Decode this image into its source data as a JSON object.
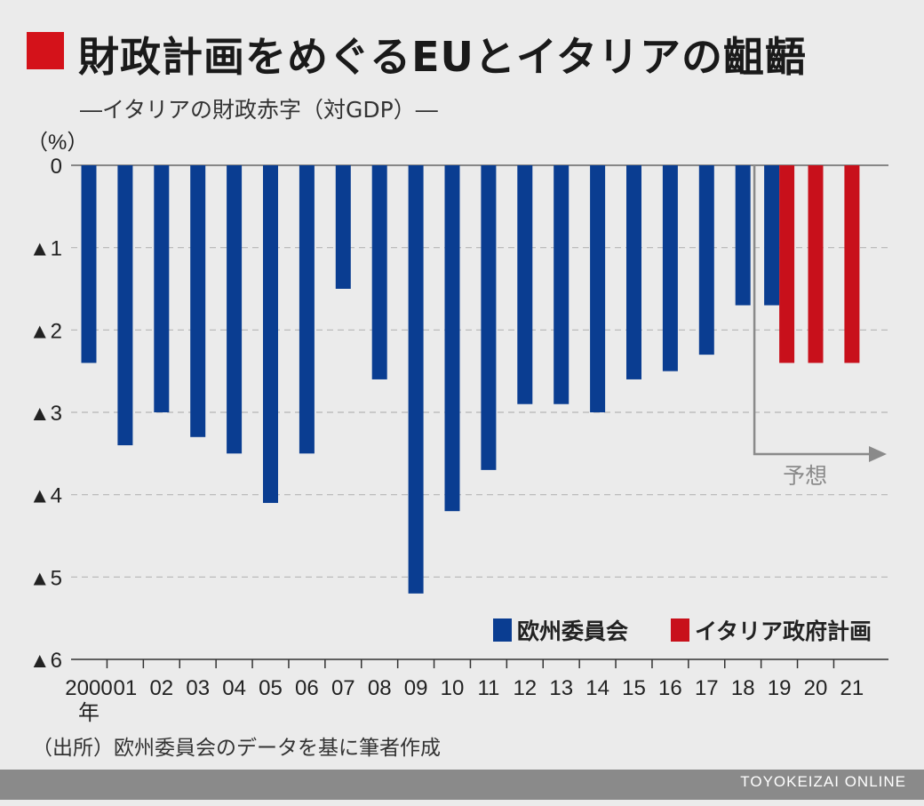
{
  "header": {
    "title": "財政計画をめぐるEUとイタリアの齟齬",
    "subtitle": "―イタリアの財政赤字（対GDP）―"
  },
  "chart_data": {
    "type": "bar",
    "unit_label": "（%）",
    "categories": [
      "2000",
      "01",
      "02",
      "03",
      "04",
      "05",
      "06",
      "07",
      "08",
      "09",
      "10",
      "11",
      "12",
      "13",
      "14",
      "15",
      "16",
      "17",
      "18",
      "19",
      "20",
      "21"
    ],
    "x_unit_label": "年",
    "y_ticks": [
      {
        "value": 0,
        "label": "0"
      },
      {
        "value": -1,
        "label": "▲1"
      },
      {
        "value": -2,
        "label": "▲2"
      },
      {
        "value": -3,
        "label": "▲3"
      },
      {
        "value": -4,
        "label": "▲4"
      },
      {
        "value": -5,
        "label": "▲5"
      },
      {
        "value": -6,
        "label": "▲6"
      }
    ],
    "ylim": [
      -6,
      0
    ],
    "grid": true,
    "series": [
      {
        "name": "欧州委員会",
        "color": "#0a3d91",
        "values": [
          -2.4,
          -3.4,
          -3.0,
          -3.3,
          -3.5,
          -4.1,
          -3.5,
          -1.5,
          -2.6,
          -5.2,
          -4.2,
          -3.7,
          -2.9,
          -2.9,
          -3.0,
          -2.6,
          -2.5,
          -2.3,
          -1.7,
          -1.7,
          null,
          null
        ]
      },
      {
        "name": "イタリア政府計画",
        "color": "#c8101b",
        "values": [
          null,
          null,
          null,
          null,
          null,
          null,
          null,
          null,
          null,
          null,
          null,
          null,
          null,
          null,
          null,
          null,
          null,
          null,
          null,
          -2.4,
          -2.4,
          -2.4
        ]
      }
    ],
    "legend_position": "bottom-right",
    "annotation": {
      "text": "予想",
      "from_category": "19"
    }
  },
  "source_note": "（出所）欧州委員会のデータを基に筆者作成",
  "footer": {
    "credit": "TOYOKEIZAI ONLINE"
  }
}
